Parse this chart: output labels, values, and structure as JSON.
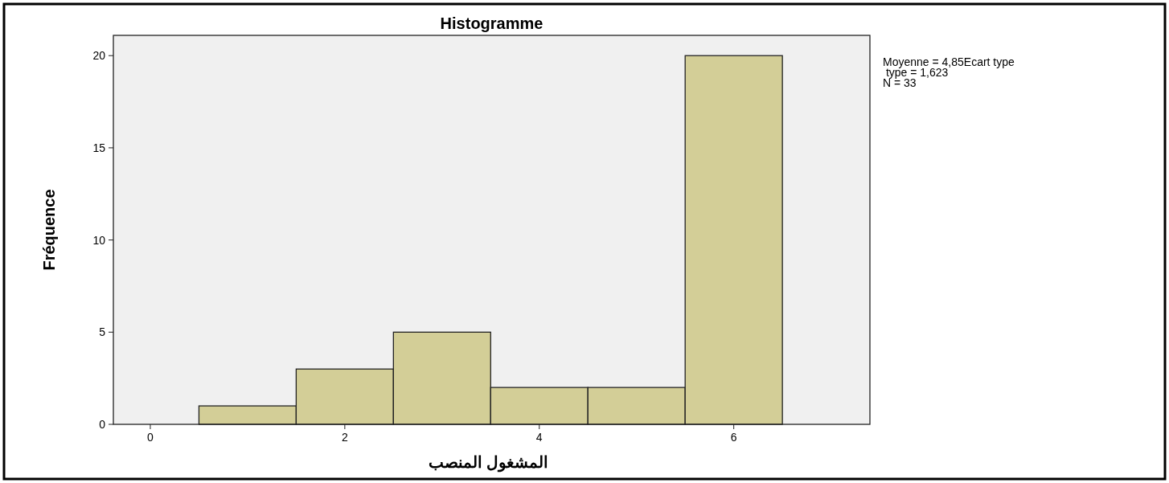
{
  "chart_data": {
    "type": "histogram",
    "title": "Histogramme",
    "xlabel": "المشغول المنصب",
    "ylabel": "Fréquence",
    "bins": [
      0.5,
      1.5,
      2.5,
      3.5,
      4.5,
      5.5,
      6.5
    ],
    "values": [
      1,
      3,
      5,
      2,
      2,
      20
    ],
    "color": "#d3ce97",
    "xlim": [
      -0.38,
      7.4
    ],
    "ylim": [
      0,
      21.1
    ],
    "xticks": [
      0,
      2,
      4,
      6
    ],
    "yticks": [
      0,
      5,
      10,
      15,
      20
    ],
    "annotations": [
      "Moyenne = 4,85Ecart type",
      " type = 1,623",
      "N = 33"
    ]
  }
}
